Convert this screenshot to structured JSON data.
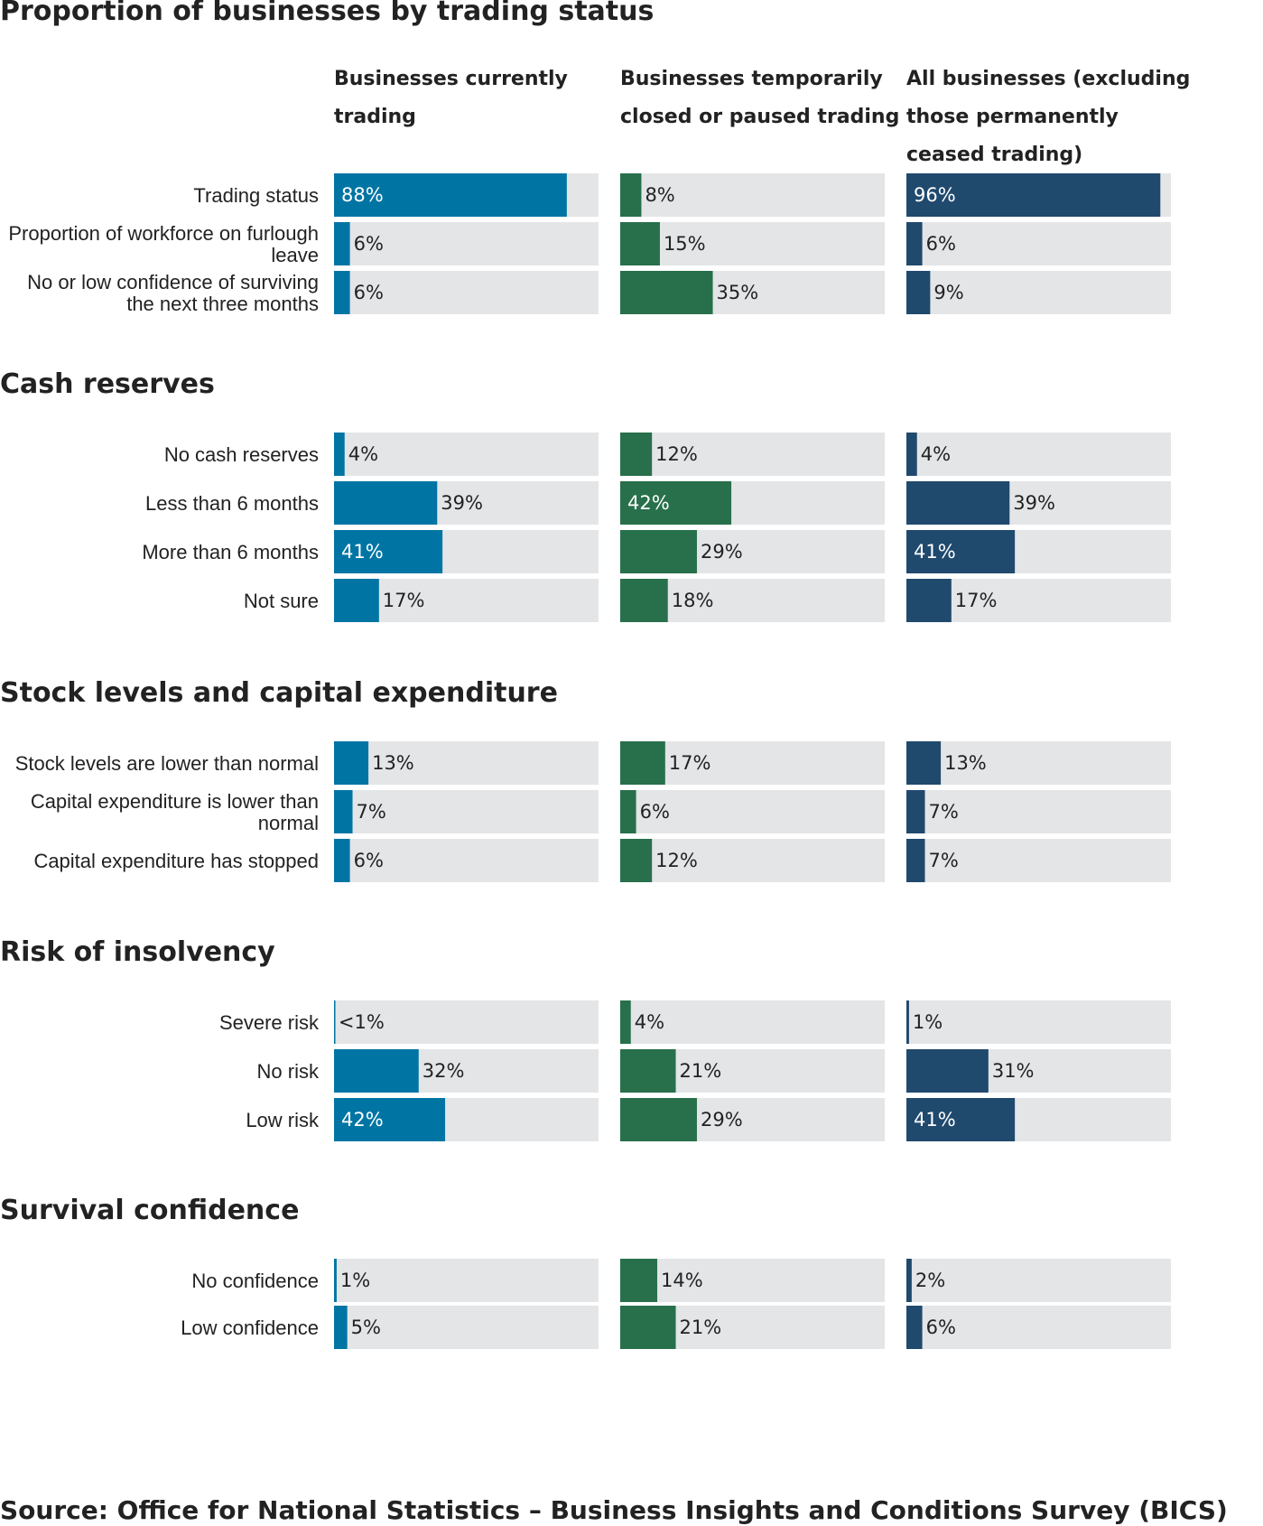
{
  "title": "Proportion of businesses by trading status",
  "column_headers": [
    [
      "Businesses currently",
      "trading"
    ],
    [
      "Businesses temporarily",
      "closed or paused trading"
    ],
    [
      "All businesses (excluding",
      "those permanently",
      "ceased trading)"
    ]
  ],
  "colors": {
    "series": [
      "#0075a4",
      "#27704b",
      "#20496e"
    ],
    "track": "#e4e5e7",
    "text": "#222222",
    "label_inside": "#ffffff"
  },
  "source": "Source: Office for National Statistics – Business Insights and Conditions Survey (BICS)",
  "chart_data": {
    "type": "bar",
    "orientation": "horizontal",
    "xlim": [
      0,
      100
    ],
    "unit": "%",
    "series": [
      {
        "name": "Businesses currently trading"
      },
      {
        "name": "Businesses temporarily closed or paused trading"
      },
      {
        "name": "All businesses (excluding those permanently ceased trading)"
      }
    ],
    "sections": [
      {
        "title": "",
        "rows": [
          {
            "label": [
              "Trading status"
            ],
            "values": [
              88,
              8,
              96
            ],
            "labels": [
              "88%",
              "8%",
              "96%"
            ]
          },
          {
            "label": [
              "Proportion of workforce on furlough",
              "leave"
            ],
            "values": [
              6,
              15,
              6
            ],
            "labels": [
              "6%",
              "15%",
              "6%"
            ]
          },
          {
            "label": [
              "No or low confidence of surviving",
              "the next three months"
            ],
            "values": [
              6,
              35,
              9
            ],
            "labels": [
              "6%",
              "35%",
              "9%"
            ]
          }
        ]
      },
      {
        "title": "Cash reserves",
        "rows": [
          {
            "label": [
              "No cash reserves"
            ],
            "values": [
              4,
              12,
              4
            ],
            "labels": [
              "4%",
              "12%",
              "4%"
            ]
          },
          {
            "label": [
              "Less than 6 months"
            ],
            "values": [
              39,
              42,
              39
            ],
            "labels": [
              "39%",
              "42%",
              "39%"
            ]
          },
          {
            "label": [
              "More than 6 months"
            ],
            "values": [
              41,
              29,
              41
            ],
            "labels": [
              "41%",
              "29%",
              "41%"
            ]
          },
          {
            "label": [
              "Not sure"
            ],
            "values": [
              17,
              18,
              17
            ],
            "labels": [
              "17%",
              "18%",
              "17%"
            ]
          }
        ]
      },
      {
        "title": "Stock levels and capital expenditure",
        "rows": [
          {
            "label": [
              "Stock levels are lower than normal"
            ],
            "values": [
              13,
              17,
              13
            ],
            "labels": [
              "13%",
              "17%",
              "13%"
            ]
          },
          {
            "label": [
              "Capital expenditure is lower than",
              "normal"
            ],
            "values": [
              7,
              6,
              7
            ],
            "labels": [
              "7%",
              "6%",
              "7%"
            ]
          },
          {
            "label": [
              "Capital expenditure has stopped"
            ],
            "values": [
              6,
              12,
              7
            ],
            "labels": [
              "6%",
              "12%",
              "7%"
            ]
          }
        ]
      },
      {
        "title": "Risk of insolvency",
        "rows": [
          {
            "label": [
              "Severe risk"
            ],
            "values": [
              0.3,
              4,
              1
            ],
            "labels": [
              "<1%",
              "4%",
              "1%"
            ]
          },
          {
            "label": [
              "No risk"
            ],
            "values": [
              32,
              21,
              31
            ],
            "labels": [
              "32%",
              "21%",
              "31%"
            ]
          },
          {
            "label": [
              "Low risk"
            ],
            "values": [
              42,
              29,
              41
            ],
            "labels": [
              "42%",
              "29%",
              "41%"
            ]
          }
        ]
      },
      {
        "title": "Survival confidence",
        "rows": [
          {
            "label": [
              "No confidence"
            ],
            "values": [
              1,
              14,
              2
            ],
            "labels": [
              "1%",
              "14%",
              "2%"
            ]
          },
          {
            "label": [
              "Low confidence"
            ],
            "values": [
              5,
              21,
              6
            ],
            "labels": [
              "5%",
              "21%",
              "6%"
            ]
          }
        ]
      }
    ]
  }
}
